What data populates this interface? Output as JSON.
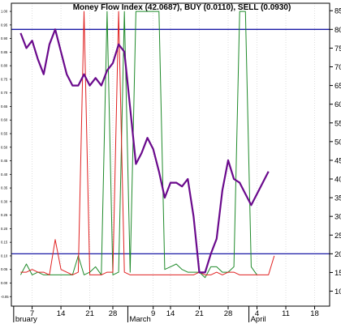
{
  "title": "Money Flow Index (42.0687), BUY (0.0110), SELL (0.0930)",
  "colors": {
    "mfi": "#6a0a8c",
    "buy": "#1f8a2a",
    "sell": "#e02020",
    "threshold": "#1a1aa6",
    "axis": "#000000",
    "grid": "#c8c8c8"
  },
  "chart_data": {
    "type": "line",
    "title": "Money Flow Index (42.0687), BUY (0.0110), SELL (0.0930)",
    "ylim": [
      6,
      87
    ],
    "y_ticks": [
      10,
      15,
      20,
      25,
      30,
      35,
      40,
      45,
      50,
      55,
      60,
      65,
      70,
      75,
      80,
      85
    ],
    "thresholds": [
      80,
      20
    ],
    "left_axis_ticks": [
      "1.00",
      "0.95",
      "0.90",
      "0.85",
      "0.80",
      "0.75",
      "0.70",
      "0.65",
      "0.60",
      "0.55",
      "0.50",
      "0.45",
      "0.40",
      "0.35",
      "0.30",
      "0.25",
      "0.20",
      "0.15",
      "0.10",
      "0.05",
      "0.00",
      "-0.05"
    ],
    "left_ylim": [
      -0.085,
      1.03
    ],
    "x_day_labels": [
      {
        "label": "7",
        "i": 2
      },
      {
        "label": "14",
        "i": 7
      },
      {
        "label": "21",
        "i": 12
      },
      {
        "label": "28",
        "i": 16
      },
      {
        "label": "9",
        "i": 23
      },
      {
        "label": "14",
        "i": 26
      },
      {
        "label": "21",
        "i": 31
      },
      {
        "label": "28",
        "i": 36
      },
      {
        "label": "4",
        "i": 41
      },
      {
        "label": "11",
        "i": 46
      },
      {
        "label": "18",
        "i": 51
      }
    ],
    "x_month_labels": [
      {
        "label": "bruary",
        "i": -1.2
      },
      {
        "label": "March",
        "i": 18.6
      },
      {
        "label": "April",
        "i": 39.6
      }
    ],
    "x_range": [
      -1.6,
      53.6
    ],
    "series": [
      {
        "key": "mfi",
        "values": [
          79,
          75,
          77,
          72,
          68,
          76,
          80,
          74,
          68,
          65,
          65,
          68,
          65,
          67,
          65,
          69,
          71,
          76,
          74,
          59,
          44,
          47,
          51,
          48,
          42,
          35,
          39,
          39,
          38,
          40,
          30,
          15,
          15,
          20,
          24,
          37,
          45,
          40,
          39,
          36,
          33,
          36,
          39,
          42
        ]
      },
      {
        "key": "buy",
        "left_axis": true,
        "values": [
          0.03,
          0.07,
          0.03,
          0.04,
          0.03,
          0.03,
          0.03,
          0.03,
          0.03,
          0.03,
          0.1,
          0.03,
          0.04,
          0.06,
          0.03,
          1.0,
          0.03,
          0.04,
          1.0,
          0.04,
          1.0,
          1.0,
          1.0,
          1.0,
          1.0,
          0.05,
          0.06,
          0.07,
          0.05,
          0.04,
          0.04,
          0.04,
          0.02,
          0.06,
          0.06,
          0.04,
          0.04,
          0.06,
          1.0,
          1.0,
          0.06,
          0.03
        ]
      },
      {
        "key": "sell",
        "left_axis": true,
        "values": [
          0.04,
          0.04,
          0.05,
          0.04,
          0.04,
          0.03,
          0.16,
          0.05,
          0.04,
          0.03,
          0.04,
          1.0,
          0.03,
          0.03,
          0.03,
          0.04,
          0.04,
          1.0,
          0.04,
          0.03,
          0.03,
          0.03,
          0.03,
          0.03,
          0.03,
          0.03,
          0.03,
          0.03,
          0.03,
          0.03,
          0.03,
          0.04,
          0.03,
          0.03,
          0.04,
          0.03,
          0.04,
          0.04,
          0.03,
          0.03,
          0.03,
          0.03,
          0.03,
          0.03,
          0.1
        ]
      }
    ]
  }
}
